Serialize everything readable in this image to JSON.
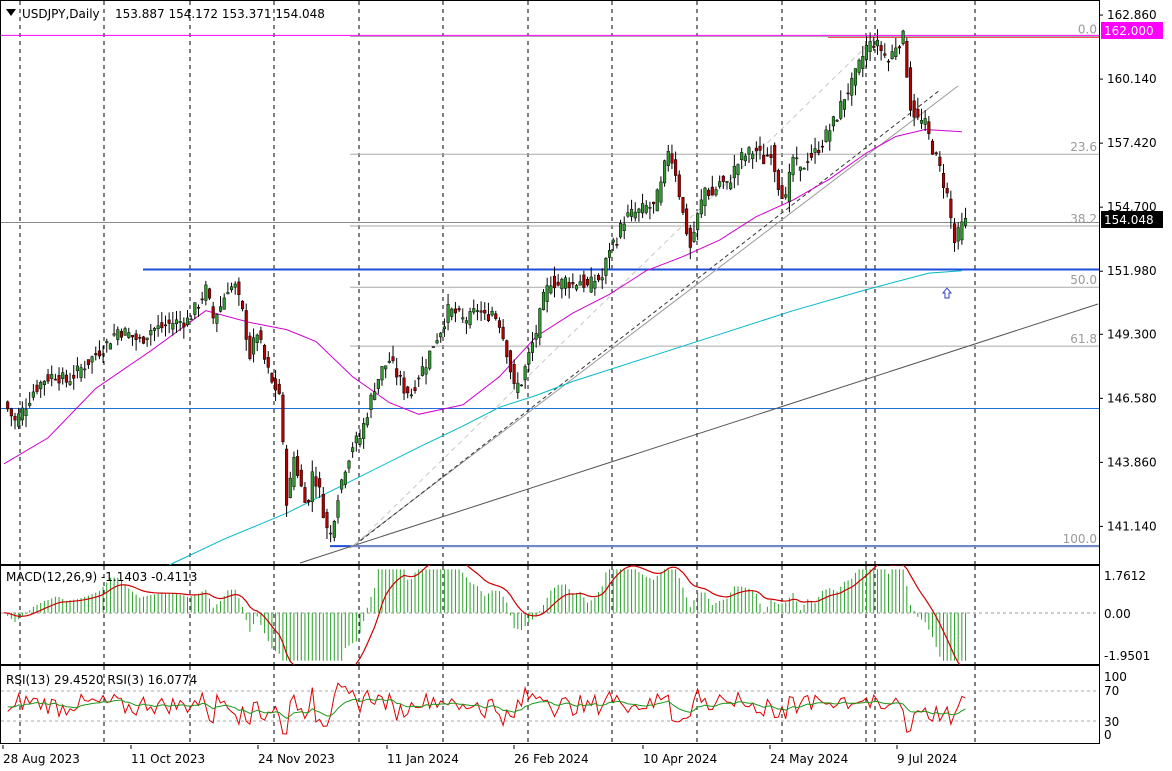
{
  "chart_data": {
    "type": "candlestick",
    "symbol_header": "USDJPY,Daily",
    "ohlc_header": "153.887 154.172 153.371 154.048",
    "current_price": 154.048,
    "current_price_label": "154.048",
    "resistance_label": "162.000",
    "price_axis": {
      "ylim": [
        139.5,
        163.5
      ],
      "ticks": [
        "162.860",
        "160.140",
        "157.420",
        "154.700",
        "151.980",
        "149.300",
        "146.580",
        "143.860",
        "141.140"
      ],
      "tick_values": [
        162.86,
        160.14,
        157.42,
        154.7,
        151.98,
        149.3,
        146.58,
        143.86,
        141.14
      ]
    },
    "date_axis": {
      "labels": [
        "28 Aug 2023",
        "11 Oct 2023",
        "24 Nov 2023",
        "11 Jan 2024",
        "26 Feb 2024",
        "10 Apr 2024",
        "24 May 2024",
        "9 Jul 2024"
      ]
    },
    "fibonacci": {
      "levels": [
        {
          "label": "0.0",
          "price": 161.95
        },
        {
          "label": "23.6",
          "price": 156.95
        },
        {
          "label": "38.2",
          "price": 153.9
        },
        {
          "label": "50.0",
          "price": 151.3
        },
        {
          "label": "61.8",
          "price": 148.8
        },
        {
          "label": "100.0",
          "price": 140.3
        }
      ]
    },
    "horizontal_lines": [
      {
        "price": 162.0,
        "color": "#ff00ff"
      },
      {
        "price": 152.05,
        "color": "#1f4fd8"
      },
      {
        "price": 140.3,
        "color": "#1f4fd8"
      },
      {
        "price": 146.15,
        "color": "#1f6fd8"
      }
    ],
    "close_series": [
      [
        0,
        146.4
      ],
      [
        3,
        145.6
      ],
      [
        6,
        146.3
      ],
      [
        8,
        146.9
      ],
      [
        11,
        147.4
      ],
      [
        14,
        147.6
      ],
      [
        17,
        147.3
      ],
      [
        20,
        147.7
      ],
      [
        24,
        148.3
      ],
      [
        28,
        148.9
      ],
      [
        31,
        149.5
      ],
      [
        34,
        149.3
      ],
      [
        37,
        149.0
      ],
      [
        40,
        149.5
      ],
      [
        43,
        149.6
      ],
      [
        46,
        149.8
      ],
      [
        50,
        149.9
      ],
      [
        53,
        150.6
      ],
      [
        55,
        151.2
      ],
      [
        57,
        150.0
      ],
      [
        59,
        150.5
      ],
      [
        61,
        151.3
      ],
      [
        63,
        151.3
      ],
      [
        65,
        150.2
      ],
      [
        67,
        148.4
      ],
      [
        69,
        149.4
      ],
      [
        71,
        148.2
      ],
      [
        73,
        147.2
      ],
      [
        75,
        146.8
      ],
      [
        76,
        144.5
      ],
      [
        77,
        142.3
      ],
      [
        78,
        143.0
      ],
      [
        79,
        144.1
      ],
      [
        81,
        142.8
      ],
      [
        83,
        142.1
      ],
      [
        84,
        143.5
      ],
      [
        86,
        142.6
      ],
      [
        88,
        141.0
      ],
      [
        89,
        140.8
      ],
      [
        91,
        142.5
      ],
      [
        93,
        143.7
      ],
      [
        95,
        144.6
      ],
      [
        97,
        144.9
      ],
      [
        99,
        146.0
      ],
      [
        101,
        147.1
      ],
      [
        103,
        147.8
      ],
      [
        105,
        148.2
      ],
      [
        107,
        147.6
      ],
      [
        109,
        147.0
      ],
      [
        111,
        146.8
      ],
      [
        113,
        147.6
      ],
      [
        115,
        148.1
      ],
      [
        117,
        148.9
      ],
      [
        119,
        149.5
      ],
      [
        121,
        150.3
      ],
      [
        123,
        150.2
      ],
      [
        125,
        149.9
      ],
      [
        127,
        150.0
      ],
      [
        129,
        150.4
      ],
      [
        131,
        150.0
      ],
      [
        133,
        150.3
      ],
      [
        135,
        149.8
      ],
      [
        137,
        148.6
      ],
      [
        139,
        147.0
      ],
      [
        141,
        147.3
      ],
      [
        143,
        148.4
      ],
      [
        145,
        149.4
      ],
      [
        147,
        150.8
      ],
      [
        149,
        151.6
      ],
      [
        151,
        151.4
      ],
      [
        153,
        151.6
      ],
      [
        155,
        151.4
      ],
      [
        157,
        151.6
      ],
      [
        159,
        151.3
      ],
      [
        161,
        151.6
      ],
      [
        163,
        151.7
      ],
      [
        165,
        153.0
      ],
      [
        167,
        153.4
      ],
      [
        169,
        154.2
      ],
      [
        171,
        154.4
      ],
      [
        173,
        154.5
      ],
      [
        175,
        154.7
      ],
      [
        177,
        154.7
      ],
      [
        179,
        155.6
      ],
      [
        181,
        157.2
      ],
      [
        183,
        156.2
      ],
      [
        185,
        154.4
      ],
      [
        187,
        153.0
      ],
      [
        189,
        154.3
      ],
      [
        191,
        155.5
      ],
      [
        193,
        155.2
      ],
      [
        195,
        155.8
      ],
      [
        197,
        155.6
      ],
      [
        199,
        156.3
      ],
      [
        201,
        156.8
      ],
      [
        203,
        157.0
      ],
      [
        205,
        157.1
      ],
      [
        207,
        156.7
      ],
      [
        209,
        157.1
      ],
      [
        211,
        155.7
      ],
      [
        213,
        155.0
      ],
      [
        215,
        156.8
      ],
      [
        217,
        156.2
      ],
      [
        219,
        156.8
      ],
      [
        221,
        157.0
      ],
      [
        223,
        157.5
      ],
      [
        225,
        158.0
      ],
      [
        227,
        158.6
      ],
      [
        229,
        159.4
      ],
      [
        231,
        159.9
      ],
      [
        233,
        160.7
      ],
      [
        235,
        161.5
      ],
      [
        237,
        161.7
      ],
      [
        239,
        161.4
      ],
      [
        241,
        160.9
      ],
      [
        243,
        161.6
      ],
      [
        245,
        161.9
      ],
      [
        247,
        159.0
      ],
      [
        249,
        158.4
      ],
      [
        251,
        158.2
      ],
      [
        253,
        157.2
      ],
      [
        255,
        156.3
      ],
      [
        257,
        155.2
      ],
      [
        259,
        153.2
      ],
      [
        261,
        153.9
      ],
      [
        262,
        154.05
      ]
    ],
    "ma_magenta": [
      [
        0,
        143.8
      ],
      [
        12,
        144.9
      ],
      [
        25,
        147.0
      ],
      [
        40,
        148.6
      ],
      [
        55,
        150.3
      ],
      [
        67,
        149.8
      ],
      [
        77,
        149.5
      ],
      [
        85,
        149.0
      ],
      [
        95,
        147.5
      ],
      [
        105,
        146.4
      ],
      [
        113,
        145.9
      ],
      [
        125,
        146.3
      ],
      [
        135,
        147.5
      ],
      [
        145,
        149.2
      ],
      [
        155,
        150.2
      ],
      [
        165,
        151.0
      ],
      [
        175,
        152.0
      ],
      [
        185,
        152.6
      ],
      [
        195,
        153.3
      ],
      [
        205,
        154.3
      ],
      [
        215,
        155.0
      ],
      [
        225,
        155.9
      ],
      [
        235,
        157.0
      ],
      [
        243,
        157.7
      ],
      [
        251,
        158.0
      ],
      [
        261,
        157.9
      ]
    ],
    "ma_cyan": [
      [
        45,
        139.5
      ],
      [
        60,
        140.6
      ],
      [
        77,
        141.7
      ],
      [
        95,
        143.1
      ],
      [
        113,
        144.5
      ],
      [
        125,
        145.4
      ],
      [
        135,
        146.2
      ],
      [
        145,
        146.7
      ],
      [
        155,
        147.3
      ],
      [
        175,
        148.3
      ],
      [
        195,
        149.3
      ],
      [
        215,
        150.3
      ],
      [
        235,
        151.2
      ],
      [
        252,
        151.9
      ],
      [
        261,
        152.0
      ]
    ],
    "macd": {
      "title": "MACD(12,26,9) -1.1403 -0.4113",
      "axis_labels": [
        "1.7612",
        "0.00",
        "-1.9501"
      ],
      "ylim": [
        -2.15,
        1.95
      ]
    },
    "rsi": {
      "title": "RSI(13) 29.4520  RSI(3) 16.0774",
      "axis_labels": [
        "100",
        "70",
        "30",
        "0"
      ]
    },
    "grid": "vertical dashed"
  }
}
